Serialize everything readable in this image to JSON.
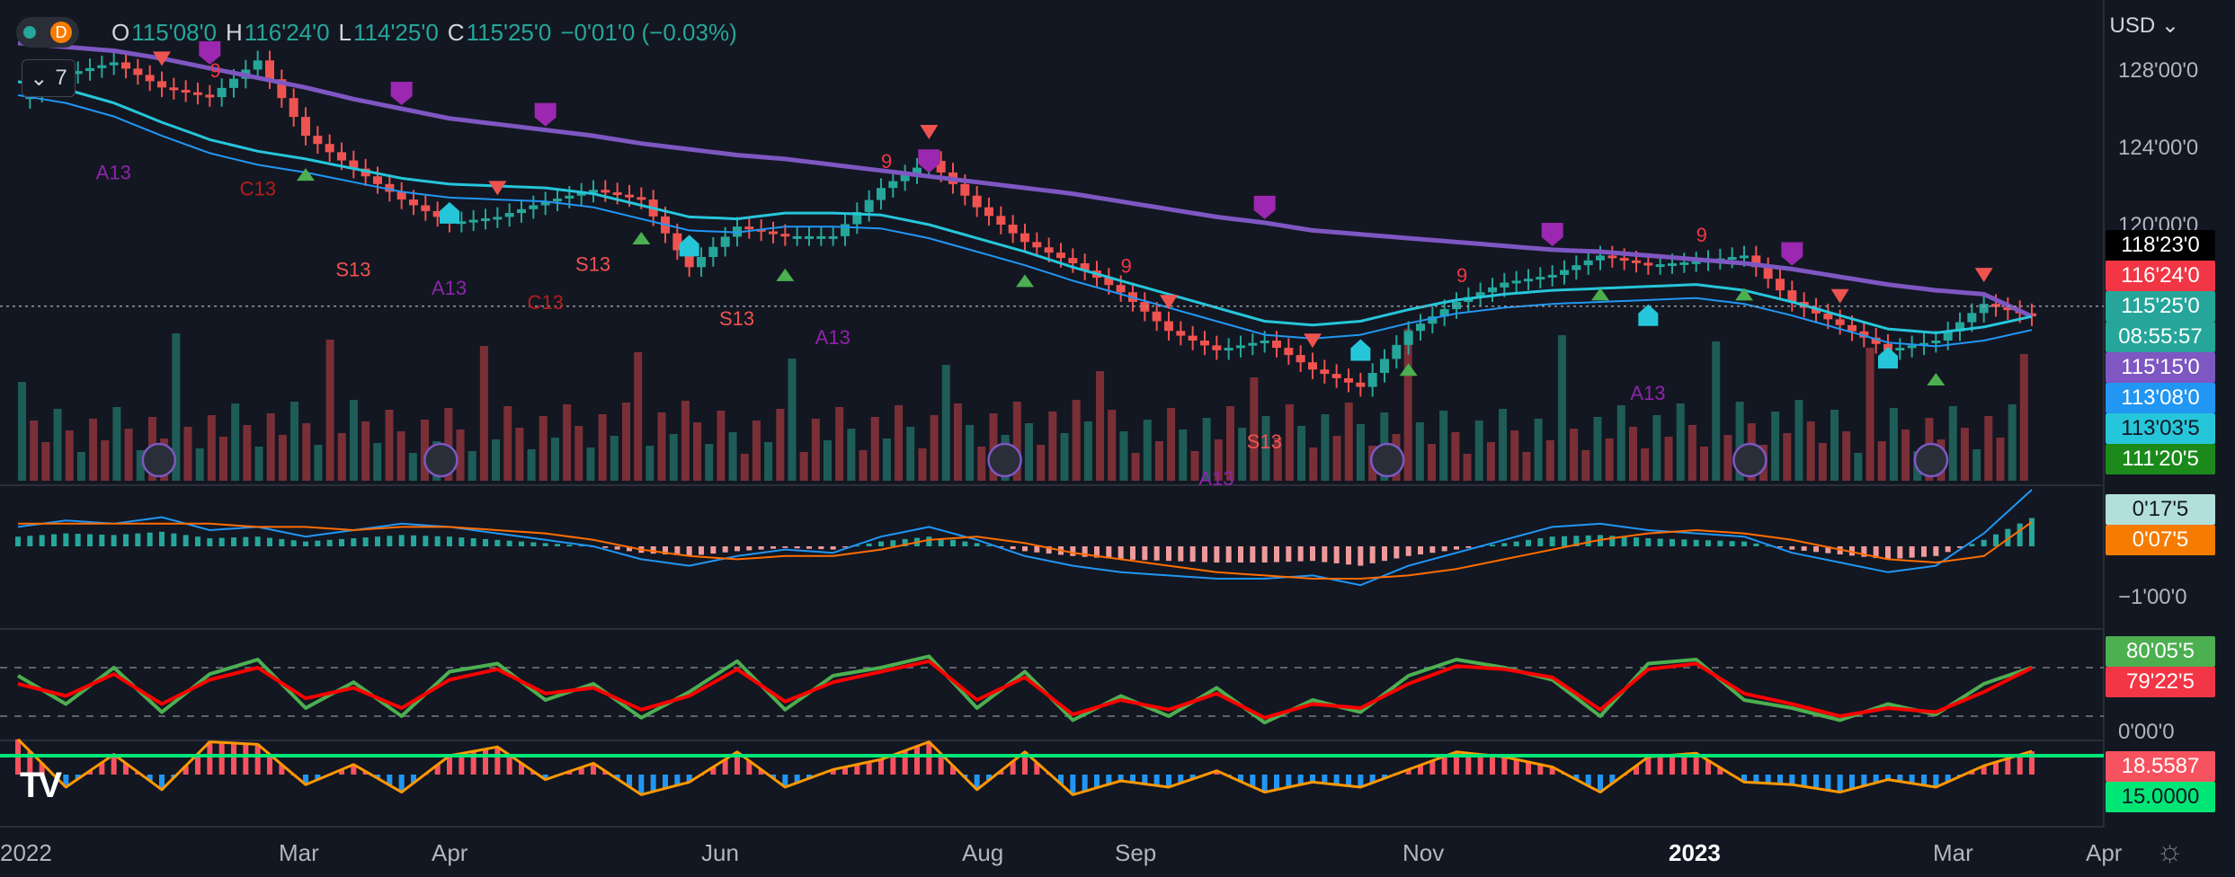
{
  "header": {
    "toggle_letter": "D",
    "open_label": "O",
    "open": "115'08'0",
    "high_label": "H",
    "high": "116'24'0",
    "low_label": "L",
    "low": "114'25'0",
    "close_label": "C",
    "close": "115'25'0",
    "change": "−0'01'0 (−0.03%)",
    "indicator_count": "7",
    "currency": "USD",
    "collapse_icon": "chevron-down-icon",
    "currency_icon": "chevron-down-icon"
  },
  "price_axis": {
    "ticks": [
      "128'00'0",
      "124'00'0",
      "120'00'0"
    ],
    "tags": [
      {
        "label": "118'23'0",
        "bg": "#000000",
        "fg": "#ffffff"
      },
      {
        "label": "116'24'0",
        "bg": "#f23645",
        "fg": "#ffffff"
      },
      {
        "label": "115'25'0",
        "bg": "#26a69a",
        "fg": "#ffffff"
      },
      {
        "label": "08:55:57",
        "bg": "#26a69a",
        "fg": "#ffffff"
      },
      {
        "label": "115'15'0",
        "bg": "#7e57c2",
        "fg": "#ffffff"
      },
      {
        "label": "113'08'0",
        "bg": "#2196f3",
        "fg": "#ffffff"
      },
      {
        "label": "113'03'5",
        "bg": "#26c6da",
        "fg": "#131722"
      },
      {
        "label": "111'20'5",
        "bg": "#1b8a1b",
        "fg": "#ffffff"
      }
    ]
  },
  "macd_axis": {
    "tags": [
      {
        "label": "0'17'5",
        "bg": "#b2dfdb",
        "fg": "#131722"
      },
      {
        "label": "0'07'5",
        "bg": "#f57c00",
        "fg": "#ffffff"
      }
    ],
    "tick": "−1'00'0"
  },
  "stoch_axis": {
    "tags": [
      {
        "label": "80'05'5",
        "bg": "#4caf50",
        "fg": "#ffffff"
      },
      {
        "label": "79'22'5",
        "bg": "#f23645",
        "fg": "#ffffff"
      }
    ],
    "tick": "0'00'0"
  },
  "osc_axis": {
    "tags": [
      {
        "label": "18.5587",
        "bg": "#f7525f",
        "fg": "#ffffff"
      },
      {
        "label": "15.0000",
        "bg": "#00e676",
        "fg": "#131722"
      }
    ]
  },
  "time_axis": {
    "labels": [
      "2022",
      "Mar",
      "Apr",
      "Jun",
      "Aug",
      "Sep",
      "Nov",
      "2023",
      "Mar",
      "Apr"
    ]
  },
  "annotations": [
    "A13",
    "S13",
    "C13",
    "9"
  ],
  "colors": {
    "bull": "#26a69a",
    "bear": "#ef5350",
    "ma_slow": "#7e57c2",
    "ma_fast": "#26c6da",
    "ma_mid": "#2196f3",
    "stoch_k": "#4caf50",
    "stoch_d": "#ff0000",
    "osc_line": "#ff9800",
    "osc_pos": "#f7525f",
    "osc_neg": "#2196f3",
    "threshold": "#00e676"
  },
  "chart_data": {
    "type": "line",
    "title": "",
    "series": [
      {
        "values": [
          126.5,
          127.8,
          128.4,
          127.1,
          126.6,
          128.5,
          124.6,
          122.9,
          121.3,
          120.1,
          120.4,
          121.2,
          121.8,
          121.3,
          117.8,
          119.9,
          119.4,
          119.4,
          121.9,
          123.3,
          120.9,
          119.1,
          118.0,
          116.5,
          114.5,
          113.5,
          114.0,
          112.5,
          111.6,
          114.5,
          116.0,
          117.0,
          117.4,
          118.4,
          117.9,
          118.1,
          118.4,
          116.0,
          114.8,
          113.5,
          114.0,
          115.9,
          115.25
        ]
      },
      {
        "values": [
          127.4,
          127.0,
          126.3,
          125.3,
          124.4,
          123.8,
          123.4,
          122.9,
          122.4,
          122.1,
          122.0,
          121.9,
          121.6,
          121.0,
          120.4,
          120.3,
          120.6,
          120.6,
          120.5,
          120.0,
          119.3,
          118.6,
          117.8,
          117.1,
          116.4,
          115.7,
          115.0,
          114.8,
          115.0,
          115.6,
          116.1,
          116.4,
          116.6,
          116.7,
          116.8,
          116.9,
          116.6,
          116.0,
          115.3,
          114.6,
          114.4,
          114.7,
          115.25
        ]
      },
      {
        "values": [
          129.4,
          129.2,
          129.0,
          128.6,
          128.1,
          127.6,
          127.1,
          126.5,
          126.0,
          125.5,
          125.2,
          124.9,
          124.6,
          124.2,
          123.9,
          123.6,
          123.4,
          123.1,
          122.8,
          122.5,
          122.2,
          121.9,
          121.6,
          121.2,
          120.8,
          120.4,
          120.1,
          119.7,
          119.5,
          119.3,
          119.1,
          118.9,
          118.7,
          118.6,
          118.4,
          118.2,
          118.0,
          117.7,
          117.3,
          116.9,
          116.6,
          116.4,
          115.25
        ]
      },
      {
        "values": [
          6,
          8,
          7,
          9,
          5,
          6,
          3,
          5,
          7,
          6,
          4,
          2,
          0,
          -4,
          -6,
          -3,
          -1,
          -2,
          3,
          6,
          2,
          -3,
          -6,
          -8,
          -9,
          -10,
          -10,
          -9,
          -12,
          -6,
          -2,
          2,
          6,
          7,
          5,
          4,
          3,
          -2,
          -5,
          -8,
          -6,
          4,
          17.5
        ]
      },
      {
        "values": [
          7,
          7,
          7,
          7,
          7,
          6,
          6,
          5,
          6,
          6,
          5,
          4,
          2,
          -1,
          -3,
          -4,
          -3,
          -3,
          -1,
          2,
          3,
          1,
          -2,
          -4,
          -6,
          -8,
          -9,
          -10,
          -10,
          -9,
          -7,
          -4,
          -1,
          2,
          4,
          5,
          4,
          2,
          -1,
          -4,
          -5,
          -3,
          7.5
        ]
      },
      {
        "values": [
          70,
          35,
          80,
          25,
          72,
          90,
          30,
          62,
          20,
          75,
          85,
          40,
          60,
          18,
          50,
          88,
          28,
          70,
          80,
          94,
          30,
          75,
          15,
          45,
          20,
          55,
          12,
          40,
          25,
          70,
          90,
          80,
          65,
          20,
          85,
          90,
          40,
          30,
          15,
          35,
          22,
          60,
          80.2
        ]
      },
      {
        "values": [
          60,
          45,
          72,
          35,
          65,
          80,
          42,
          55,
          30,
          65,
          78,
          48,
          55,
          28,
          45,
          78,
          38,
          62,
          75,
          88,
          40,
          68,
          22,
          40,
          28,
          48,
          18,
          35,
          30,
          60,
          82,
          78,
          68,
          28,
          78,
          85,
          48,
          35,
          20,
          30,
          25,
          50,
          79.7
        ]
      },
      {
        "values": [
          28,
          -10,
          16,
          -12,
          26,
          24,
          -8,
          8,
          -14,
          15,
          22,
          -4,
          9,
          -16,
          -6,
          18,
          -10,
          4,
          12,
          26,
          -12,
          18,
          -16,
          -5,
          -10,
          3,
          -14,
          -6,
          -10,
          4,
          18,
          14,
          6,
          -14,
          14,
          17,
          -6,
          -8,
          -14,
          -4,
          -10,
          7,
          18.5587
        ]
      }
    ],
    "threshold": 15.0,
    "price_ticks": [
      128,
      124,
      120
    ],
    "current_price": 115.78,
    "current_label": "115'25'0"
  }
}
